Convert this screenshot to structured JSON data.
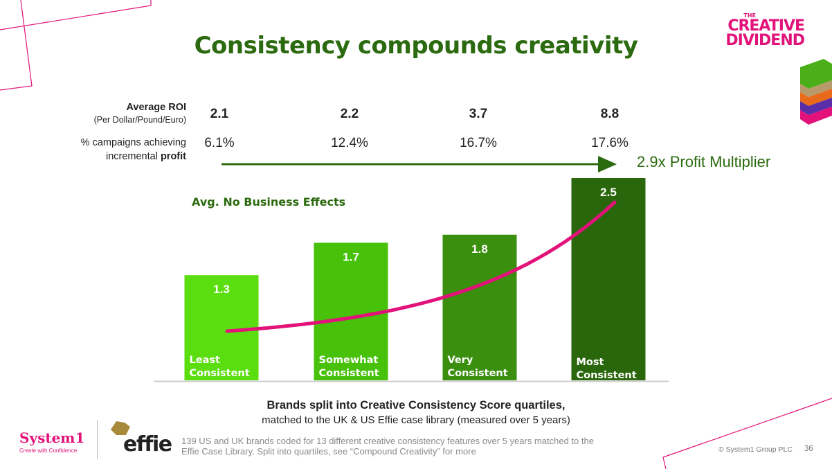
{
  "title": "Consistency compounds creativity",
  "brand": {
    "line1": "THE",
    "line2": "CREATIVE",
    "line3": "DIVIDEND"
  },
  "row_labels": {
    "roi_main": "Average ROI",
    "roi_sub": "(Per Dollar/Pound/Euro)",
    "pct_line1": "% campaigns achieving",
    "pct_line2_prefix": "incremental ",
    "pct_line2_bold": "profit"
  },
  "roi_values": [
    "2.1",
    "2.2",
    "3.7",
    "8.8"
  ],
  "pct_values": [
    "6.1%",
    "12.4%",
    "16.7%",
    "17.6%"
  ],
  "multiplier_label": "2.9x Profit Multiplier",
  "no_effects_label": "Avg. No Business Effects",
  "colors": {
    "title_green": "#2b6a0f",
    "accent_pink": "#e2127a",
    "bars": [
      "#5bde10",
      "#47c10a",
      "#3a8f0e",
      "#2a660c"
    ]
  },
  "chart_data": {
    "type": "bar",
    "categories": [
      [
        "Least",
        "Consistent"
      ],
      [
        "Somewhat",
        "Consistent"
      ],
      [
        "Very",
        "Consistent"
      ],
      [
        "Most",
        "Consistent"
      ]
    ],
    "values": [
      1.3,
      1.7,
      1.8,
      2.5
    ],
    "value_labels": [
      "1.3",
      "1.7",
      "1.8",
      "2.5"
    ],
    "ylim": [
      0,
      2.5
    ],
    "trend_curve": "exponential",
    "grid": false,
    "legend": "none"
  },
  "caption": {
    "line1": "Brands split into Creative Consistency Score quartiles,",
    "line2": "matched to the UK & US Effie case library (measured over 5 years)"
  },
  "footnote": {
    "line1": "139 US and UK brands coded for 13 different creative consistency features over 5 years matched to the",
    "line2": "Effie Case Library. Split into quartiles, see “Compound Creativity” for more"
  },
  "logos": {
    "system1": "System1",
    "system1_tagline": "Create with Confidence",
    "effie": "effie"
  },
  "copyright": "© System1 Group PLC",
  "page_number": "36"
}
